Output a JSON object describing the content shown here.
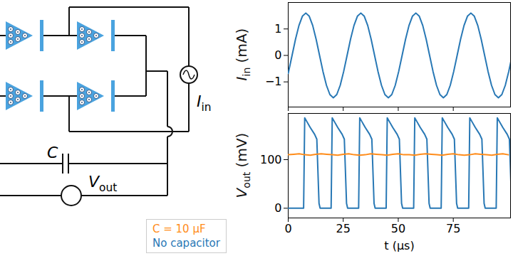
{
  "diagram": {
    "capacitor_label": "C",
    "current_source_label": {
      "symbol": "I",
      "subscript": "in"
    },
    "voltmeter_label": {
      "symbol": "V",
      "subscript": "out"
    }
  },
  "chart_data": [
    {
      "type": "line",
      "ylabel": {
        "symbol": "I",
        "subscript": "in",
        "unit": "(mA)"
      },
      "xlim": [
        0,
        101
      ],
      "xticks": [
        0,
        25,
        50,
        75
      ],
      "ylim": [
        -1.95,
        2.0
      ],
      "yticks": [
        {
          "value": -1,
          "label": "−1"
        },
        0,
        1
      ],
      "tick_labels": "y",
      "color": "#2878b5",
      "x": [
        0,
        1.75,
        3.31,
        4.88,
        6.44,
        8.0,
        9.56,
        11.13,
        12.69,
        14.25,
        15.81,
        17.38,
        18.94,
        20.5,
        22.06,
        23.63,
        25.19,
        26.75,
        28.31,
        29.88,
        31.44,
        33.0,
        34.56,
        36.13,
        37.69,
        39.25,
        40.81,
        42.38,
        43.94,
        45.5,
        47.06,
        48.63,
        50.19,
        51.75,
        53.31,
        54.88,
        56.44,
        58.0,
        59.56,
        61.13,
        62.69,
        64.25,
        65.81,
        67.38,
        68.94,
        70.5,
        72.06,
        73.63,
        75.19,
        76.75,
        78.31,
        79.88,
        81.44,
        83.0,
        84.56,
        86.13,
        87.69,
        89.25,
        90.81,
        92.38,
        93.94,
        95.5,
        97.06,
        98.63,
        100.19,
        101.75
      ],
      "values": [
        -0.68,
        0,
        0.61,
        1.13,
        1.48,
        1.6,
        1.48,
        1.13,
        0.61,
        0,
        -0.61,
        -1.13,
        -1.48,
        -1.6,
        -1.48,
        -1.13,
        -0.61,
        0,
        0.61,
        1.13,
        1.48,
        1.6,
        1.48,
        1.13,
        0.61,
        0,
        -0.61,
        -1.13,
        -1.48,
        -1.6,
        -1.48,
        -1.13,
        -0.61,
        0,
        0.61,
        1.13,
        1.48,
        1.6,
        1.48,
        1.13,
        0.61,
        0,
        -0.61,
        -1.13,
        -1.48,
        -1.6,
        -1.48,
        -1.13,
        -0.61,
        0,
        0.61,
        1.13,
        1.48,
        1.6,
        1.48,
        1.13,
        0.61,
        0,
        -0.61,
        -1.13,
        -1.48,
        -1.6,
        -1.48,
        -1.13,
        -0.61,
        0
      ]
    },
    {
      "type": "line",
      "xlabel": "t (μs)",
      "ylabel": {
        "symbol": "V",
        "subscript": "out",
        "unit": "(mV)"
      },
      "xlim": [
        0,
        101
      ],
      "xticks": [
        0,
        25,
        50,
        75
      ],
      "ylim": [
        -20,
        195
      ],
      "yticks": [
        0,
        100
      ],
      "legend": "lower left",
      "series": [
        {
          "name": "C = 10 μF",
          "color": "#ff8c1a",
          "x": [
            0,
            2.5,
            5,
            7.5,
            10,
            12.5,
            15,
            17.5,
            20,
            22.5,
            25,
            27.5,
            30,
            32.5,
            35,
            37.5,
            40,
            42.5,
            45,
            47.5,
            50,
            52.5,
            55,
            57.5,
            60,
            62.5,
            65,
            67.5,
            70,
            72.5,
            75,
            77.5,
            80,
            82.5,
            85,
            87.5,
            90,
            92.5,
            95,
            97.5,
            100
          ],
          "values": [
            110,
            111,
            112,
            110,
            109,
            111,
            112,
            111,
            110,
            109,
            111,
            112,
            110,
            109,
            110,
            112,
            111,
            110,
            109,
            111,
            112,
            110,
            110,
            109,
            111,
            112,
            111,
            110,
            109,
            111,
            112,
            110,
            109,
            110,
            112,
            111,
            110,
            109,
            111,
            112,
            110
          ]
        },
        {
          "name": "No capacitor",
          "color": "#2878b5",
          "x": [
            0,
            7,
            7.5,
            8.5,
            10,
            12,
            13,
            14,
            14.5,
            19.5,
            20,
            21,
            22.5,
            24.5,
            25.5,
            26.5,
            27,
            32,
            32.5,
            33.5,
            35,
            37,
            38,
            39,
            39.5,
            44.5,
            45,
            46,
            47.5,
            49.5,
            50.5,
            51.5,
            52,
            57,
            57.5,
            58.5,
            60,
            62,
            63,
            64,
            64.5,
            69.5,
            70,
            71,
            72.5,
            74.5,
            75.5,
            76.5,
            77,
            82,
            82.5,
            83.5,
            85,
            87,
            88,
            89,
            89.5,
            94.5,
            95,
            96,
            97.5,
            99.5,
            100.5,
            101.5,
            102
          ],
          "values": [
            0,
            0,
            186,
            178,
            166,
            152,
            142,
            10,
            0,
            0,
            186,
            178,
            166,
            152,
            142,
            10,
            0,
            0,
            186,
            178,
            166,
            152,
            142,
            10,
            0,
            0,
            186,
            178,
            166,
            152,
            142,
            10,
            0,
            0,
            186,
            178,
            166,
            152,
            142,
            10,
            0,
            0,
            186,
            178,
            166,
            152,
            142,
            10,
            0,
            0,
            186,
            178,
            166,
            152,
            142,
            10,
            0,
            0,
            186,
            178,
            166,
            152,
            142,
            10,
            0
          ]
        }
      ]
    }
  ]
}
